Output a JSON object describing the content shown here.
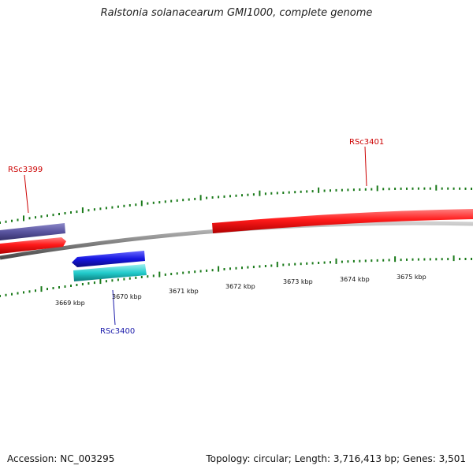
{
  "title": "Ralstonia solanacearum GMI1000, complete genome",
  "footer": {
    "accession": "Accession: NC_003295",
    "summary": "Topology: circular; Length: 3,716,413 bp; Genes: 3,501"
  },
  "colors": {
    "backbone": "#888888",
    "tick": "#1a7a1a",
    "feature_red": "#ff1a1a",
    "feature_purple": "#5a55a0",
    "feature_blue": "#1515e0",
    "feature_cyan": "#22cccc",
    "label_forward": "#cc0000",
    "label_reverse": "#1a1aaa"
  },
  "scale_labels": [
    "3669 kbp",
    "3670 kbp",
    "3671 kbp",
    "3672 kbp",
    "3673 kbp",
    "3674 kbp",
    "3675 kbp"
  ],
  "gene_labels": [
    {
      "id": "RSc3399",
      "strand": "forward"
    },
    {
      "id": "RSc3401",
      "strand": "forward"
    },
    {
      "id": "RSc3400",
      "strand": "reverse"
    }
  ]
}
